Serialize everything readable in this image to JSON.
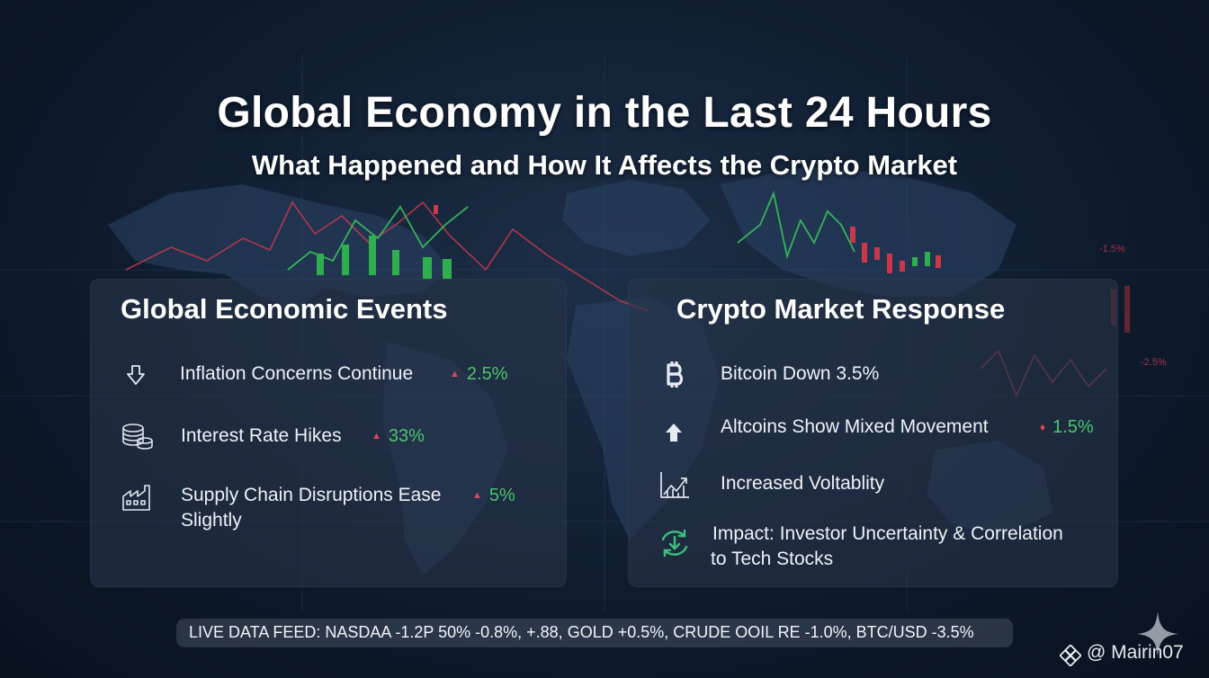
{
  "header": {
    "title": "Global Economy in the Last 24 Hours",
    "subtitle": "What Happened and How It Affects the Crypto Market"
  },
  "left_panel": {
    "title": "Global Economic Events",
    "items": [
      {
        "icon": "down-arrow-icon",
        "label": "Inflation Concerns Continue",
        "change": "2.5%"
      },
      {
        "icon": "coin-stack-icon",
        "label": "Interest Rate Hikes",
        "change": "33%"
      },
      {
        "icon": "factory-icon",
        "label": "Supply Chain Disruptions Ease",
        "label2": "Slightly",
        "change": "5%"
      }
    ]
  },
  "right_panel": {
    "title": "Crypto Market Response",
    "items": [
      {
        "icon": "bitcoin-icon",
        "label": "Bitcoin Down 3.5%"
      },
      {
        "icon": "up-arrow-icon",
        "label": "Altcoins Show Mixed Movement",
        "change": "1.5%"
      },
      {
        "icon": "rising-chart-icon",
        "label": "Increased Voltablity"
      },
      {
        "icon": "refresh-cycle-icon",
        "label": "Impact: Investor Uncertainty & Correlation",
        "label2": "to Tech Stocks"
      }
    ]
  },
  "background_labels": {
    "label_a": "-1.5%",
    "label_b": "-2.5%"
  },
  "ticker": {
    "text": "LIVE DATA FEED: NASDAA -1.2P 50% -0.8%, +.88, GOLD +0.5%, CRUDE OOIL RE -1.0%, BTC/USD -3.5%"
  },
  "watermark": {
    "text": "@ Mairin07"
  },
  "colors": {
    "up_green": "#4bc46a",
    "down_red": "#e0455b",
    "background": "#0f1c2f",
    "panel": "#263448"
  }
}
